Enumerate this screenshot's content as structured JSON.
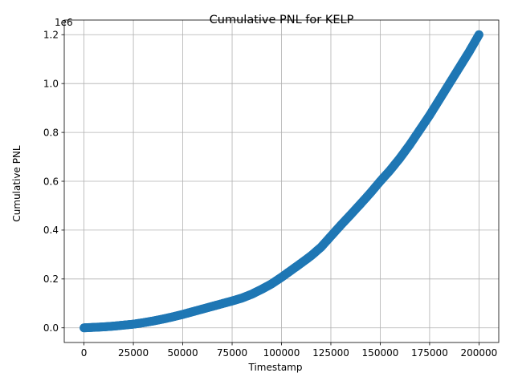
{
  "chart_data": {
    "type": "scatter",
    "title": "Cumulative PNL for KELP",
    "xlabel": "Timestamp",
    "ylabel": "Cumulative PNL",
    "y_offset_label": "1e6",
    "xlim": [
      -10000,
      210000
    ],
    "ylim": [
      -0.06,
      1.26
    ],
    "x_ticks": [
      0,
      25000,
      50000,
      75000,
      100000,
      125000,
      150000,
      175000,
      200000
    ],
    "x_tick_labels": [
      "0",
      "25000",
      "50000",
      "75000",
      "100000",
      "125000",
      "150000",
      "175000",
      "200000"
    ],
    "y_ticks": [
      0.0,
      0.2,
      0.4,
      0.6,
      0.8,
      1.0,
      1.2
    ],
    "y_tick_labels": [
      "0.0",
      "0.2",
      "0.4",
      "0.6",
      "0.8",
      "1.0",
      "1.2"
    ],
    "grid": true,
    "marker_color": "#1f77b4",
    "series": [
      {
        "x": [
          0,
          5000,
          10000,
          15000,
          20000,
          25000,
          30000,
          35000,
          40000,
          45000,
          50000,
          55000,
          60000,
          65000,
          70000,
          75000,
          80000,
          85000,
          90000,
          95000,
          100000,
          105000,
          110000,
          115000,
          120000,
          125000,
          130000,
          135000,
          140000,
          145000,
          150000,
          155000,
          160000,
          165000,
          170000,
          175000,
          180000,
          185000,
          190000,
          195000,
          200000
        ],
        "y": [
          0.0,
          0.002,
          0.004,
          0.007,
          0.011,
          0.015,
          0.021,
          0.028,
          0.036,
          0.045,
          0.055,
          0.066,
          0.077,
          0.088,
          0.099,
          0.11,
          0.122,
          0.138,
          0.158,
          0.18,
          0.207,
          0.236,
          0.265,
          0.295,
          0.33,
          0.375,
          0.42,
          0.463,
          0.507,
          0.552,
          0.6,
          0.645,
          0.695,
          0.75,
          0.81,
          0.87,
          0.935,
          1.0,
          1.065,
          1.13,
          1.2
        ]
      }
    ]
  }
}
